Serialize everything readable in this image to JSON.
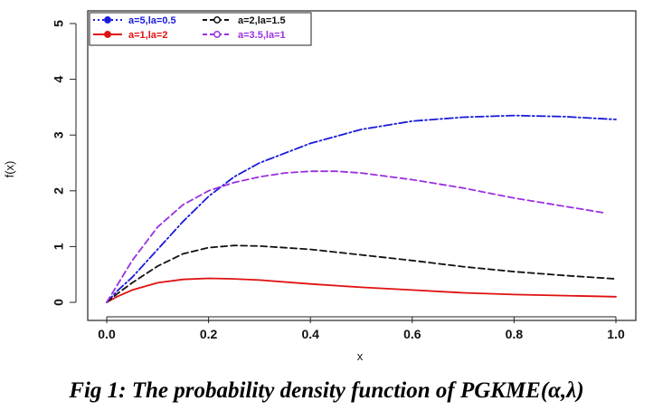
{
  "chart_data": {
    "type": "line",
    "title": "",
    "xlabel": "x",
    "ylabel": "f(x)",
    "xlim": [
      0.0,
      1.0
    ],
    "ylim": [
      0,
      5
    ],
    "xticks": [
      "0.0",
      "0.2",
      "0.4",
      "0.6",
      "0.8",
      "1.0"
    ],
    "yticks": [
      "0",
      "1",
      "2",
      "3",
      "4",
      "5"
    ],
    "legend_position": "top-left",
    "series": [
      {
        "name": "a=5,la=0.5",
        "color": "#1a1adb",
        "style": "dashdot",
        "x": [
          0.0,
          0.02,
          0.05,
          0.1,
          0.15,
          0.2,
          0.25,
          0.3,
          0.4,
          0.5,
          0.6,
          0.7,
          0.8,
          0.9,
          1.0
        ],
        "y": [
          0.0,
          0.2,
          0.45,
          0.95,
          1.45,
          1.9,
          2.25,
          2.5,
          2.85,
          3.1,
          3.25,
          3.32,
          3.35,
          3.33,
          3.28
        ]
      },
      {
        "name": "a=1,la=2",
        "color": "#e01010",
        "style": "solid",
        "x": [
          0.0,
          0.02,
          0.05,
          0.1,
          0.15,
          0.2,
          0.25,
          0.3,
          0.4,
          0.5,
          0.6,
          0.7,
          0.8,
          0.9,
          1.0
        ],
        "y": [
          0.0,
          0.1,
          0.22,
          0.35,
          0.41,
          0.43,
          0.42,
          0.4,
          0.33,
          0.27,
          0.22,
          0.17,
          0.14,
          0.12,
          0.1
        ]
      },
      {
        "name": "a=2,la=1.5",
        "color": "#111111",
        "style": "dashed",
        "x": [
          0.0,
          0.02,
          0.05,
          0.1,
          0.15,
          0.2,
          0.25,
          0.3,
          0.4,
          0.5,
          0.6,
          0.7,
          0.8,
          0.9,
          1.0
        ],
        "y": [
          0.0,
          0.15,
          0.35,
          0.65,
          0.87,
          0.98,
          1.02,
          1.01,
          0.95,
          0.85,
          0.75,
          0.64,
          0.55,
          0.48,
          0.42
        ]
      },
      {
        "name": "a=3.5,la=1",
        "color": "#9a30e0",
        "style": "dashed",
        "x": [
          0.0,
          0.02,
          0.05,
          0.1,
          0.15,
          0.2,
          0.25,
          0.3,
          0.35,
          0.4,
          0.45,
          0.5,
          0.6,
          0.7,
          0.8,
          0.9,
          0.98
        ],
        "y": [
          0.0,
          0.3,
          0.75,
          1.35,
          1.75,
          2.0,
          2.15,
          2.25,
          2.32,
          2.35,
          2.35,
          2.32,
          2.2,
          2.05,
          1.87,
          1.72,
          1.6
        ]
      }
    ]
  },
  "caption": {
    "text": "Fig 1: The probability density function of PGKME(α,λ)"
  }
}
